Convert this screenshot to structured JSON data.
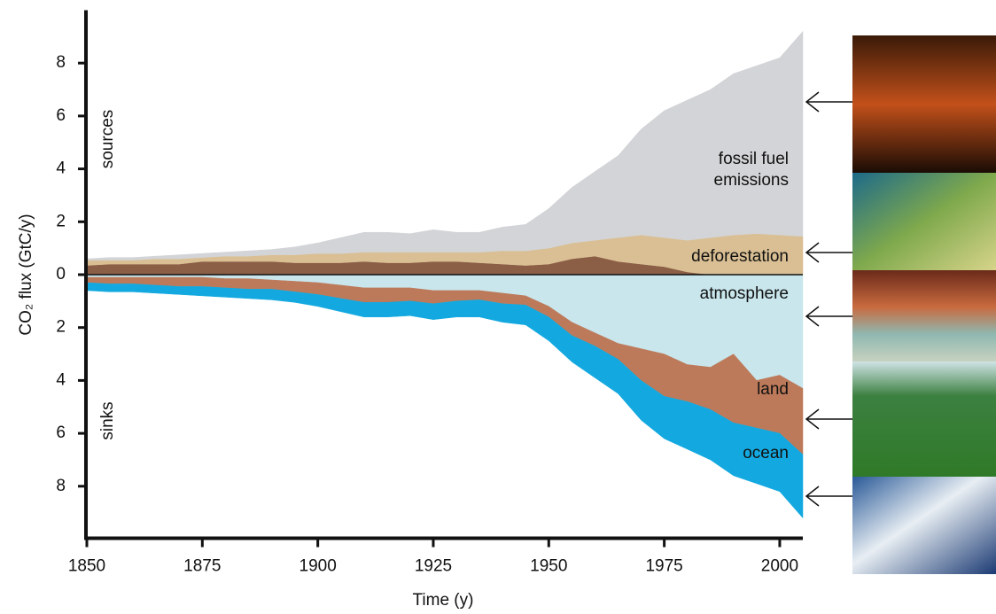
{
  "chart_data": {
    "type": "stacked_area",
    "xlabel": "Time (y)",
    "ylabel": "CO₂ flux (GtC/y)",
    "annotations": [
      "sources",
      "sinks"
    ],
    "x": [
      1850,
      1855,
      1860,
      1865,
      1870,
      1875,
      1880,
      1885,
      1890,
      1895,
      1900,
      1905,
      1910,
      1915,
      1920,
      1925,
      1930,
      1935,
      1940,
      1945,
      1950,
      1955,
      1960,
      1965,
      1970,
      1975,
      1980,
      1985,
      1990,
      1995,
      2000,
      2005
    ],
    "series": [
      {
        "color": "#8b5e46",
        "values": [
          0.35,
          0.4,
          0.4,
          0.4,
          0.4,
          0.5,
          0.5,
          0.5,
          0.5,
          0.45,
          0.45,
          0.45,
          0.5,
          0.45,
          0.45,
          0.5,
          0.5,
          0.45,
          0.4,
          0.35,
          0.4,
          0.6,
          0.7,
          0.5,
          0.4,
          0.3,
          0.1,
          0,
          0,
          0,
          0,
          0
        ]
      },
      {
        "name": "deforestation",
        "color": "#d9bf93",
        "values": [
          0.2,
          0.15,
          0.15,
          0.2,
          0.2,
          0.15,
          0.2,
          0.2,
          0.25,
          0.3,
          0.35,
          0.35,
          0.35,
          0.4,
          0.4,
          0.35,
          0.35,
          0.4,
          0.5,
          0.55,
          0.6,
          0.6,
          0.6,
          0.9,
          1.1,
          1.1,
          1.2,
          1.4,
          1.5,
          1.55,
          1.5,
          1.45
        ]
      },
      {
        "name": "fossil fuel emissions",
        "color": "#d3d4d7",
        "values": [
          0.05,
          0.1,
          0.1,
          0.1,
          0.15,
          0.15,
          0.15,
          0.2,
          0.2,
          0.3,
          0.4,
          0.6,
          0.75,
          0.75,
          0.7,
          0.85,
          0.75,
          0.75,
          0.9,
          1.0,
          1.5,
          2.1,
          2.6,
          3.1,
          4.0,
          4.8,
          5.3,
          5.6,
          6.1,
          6.35,
          6.7,
          7.75
        ]
      },
      {
        "name": "atmosphere",
        "color": "#c8e6ec",
        "values": [
          -0.1,
          -0.1,
          -0.1,
          -0.1,
          -0.1,
          -0.1,
          -0.15,
          -0.15,
          -0.2,
          -0.25,
          -0.3,
          -0.4,
          -0.5,
          -0.5,
          -0.5,
          -0.6,
          -0.6,
          -0.6,
          -0.7,
          -0.8,
          -1.2,
          -1.8,
          -2.2,
          -2.6,
          -2.8,
          -3.0,
          -3.4,
          -3.5,
          -3.0,
          -4.0,
          -3.8,
          -4.3
        ]
      },
      {
        "name": "land",
        "color": "#bd7a5a",
        "values": [
          -0.2,
          -0.25,
          -0.25,
          -0.3,
          -0.35,
          -0.35,
          -0.35,
          -0.4,
          -0.35,
          -0.4,
          -0.45,
          -0.5,
          -0.55,
          -0.55,
          -0.5,
          -0.5,
          -0.4,
          -0.35,
          -0.4,
          -0.35,
          -0.4,
          -0.5,
          -0.5,
          -0.6,
          -1.2,
          -1.6,
          -1.4,
          -1.6,
          -2.6,
          -1.8,
          -2.2,
          -2.5
        ]
      },
      {
        "name": "ocean",
        "color": "#13a9e0",
        "values": [
          -0.3,
          -0.3,
          -0.3,
          -0.3,
          -0.3,
          -0.35,
          -0.35,
          -0.35,
          -0.4,
          -0.4,
          -0.45,
          -0.5,
          -0.55,
          -0.55,
          -0.55,
          -0.6,
          -0.6,
          -0.65,
          -0.7,
          -0.75,
          -0.9,
          -1.0,
          -1.2,
          -1.3,
          -1.5,
          -1.6,
          -1.8,
          -1.9,
          -2.0,
          -2.1,
          -2.2,
          -2.4
        ]
      }
    ],
    "xlim": [
      1850,
      2005
    ],
    "xticks": [
      1850,
      1875,
      1900,
      1925,
      1950,
      1975,
      2000
    ],
    "ylim": [
      -10,
      10
    ],
    "yticks": [
      {
        "value": -8,
        "label": "8"
      },
      {
        "value": -6,
        "label": "6"
      },
      {
        "value": -4,
        "label": "4"
      },
      {
        "value": -2,
        "label": "2"
      },
      0,
      2,
      4,
      6,
      8
    ]
  }
}
